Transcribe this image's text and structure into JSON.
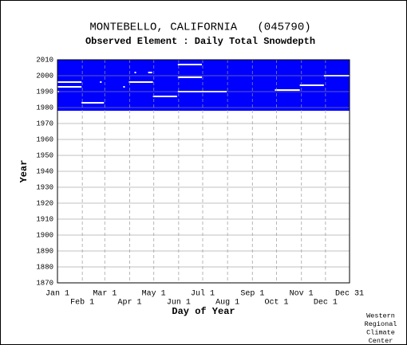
{
  "chart_data": {
    "type": "availability",
    "title": "MONTEBELLO, CALIFORNIA   (045790)",
    "subtitle": "Observed Element : Daily Total Snowdepth",
    "x_label": "Day of Year",
    "y_label": "Year",
    "credit": [
      "Western",
      "Regional",
      "Climate",
      "Center"
    ],
    "color": "#0000ff",
    "missing_color": "#ffffff",
    "grid": true,
    "coverage": [
      1978,
      2010
    ],
    "xlim": [
      1,
      365
    ],
    "xticks": [
      {
        "value": 1,
        "label": "Jan 1"
      },
      {
        "value": 32,
        "label": "Feb 1"
      },
      {
        "value": 60,
        "label": "Mar 1"
      },
      {
        "value": 91,
        "label": "Apr 1"
      },
      {
        "value": 121,
        "label": "May 1"
      },
      {
        "value": 152,
        "label": "Jun 1"
      },
      {
        "value": 182,
        "label": "Jul 1"
      },
      {
        "value": 213,
        "label": "Aug 1"
      },
      {
        "value": 244,
        "label": "Sep 1"
      },
      {
        "value": 274,
        "label": "Oct 1"
      },
      {
        "value": 305,
        "label": "Nov 1"
      },
      {
        "value": 335,
        "label": "Dec 1"
      },
      {
        "value": 365,
        "label": "Dec 31"
      }
    ],
    "ylim": [
      1870,
      2010
    ],
    "yticks": [
      1870,
      1880,
      1890,
      1900,
      1910,
      1920,
      1930,
      1940,
      1950,
      1960,
      1970,
      1980,
      1990,
      2000,
      2010
    ],
    "missing": [
      {
        "year": 1996,
        "start": 1,
        "end": 31
      },
      {
        "year": 1993,
        "start": 1,
        "end": 31
      },
      {
        "year": 1990,
        "start": 1,
        "end": 3
      },
      {
        "year": 1983,
        "start": 31,
        "end": 59
      },
      {
        "year": 1996,
        "start": 54,
        "end": 56
      },
      {
        "year": 1993,
        "start": 83,
        "end": 85
      },
      {
        "year": 2002,
        "start": 97,
        "end": 99
      },
      {
        "year": 2002,
        "start": 114,
        "end": 119
      },
      {
        "year": 1996,
        "start": 90,
        "end": 120
      },
      {
        "year": 1987,
        "start": 120,
        "end": 150
      },
      {
        "year": 2007,
        "start": 151,
        "end": 181
      },
      {
        "year": 1999,
        "start": 151,
        "end": 181
      },
      {
        "year": 1990,
        "start": 151,
        "end": 212
      },
      {
        "year": 1991,
        "start": 272,
        "end": 303
      },
      {
        "year": 1994,
        "start": 303,
        "end": 333
      },
      {
        "year": 2000,
        "start": 333,
        "end": 365
      }
    ]
  }
}
